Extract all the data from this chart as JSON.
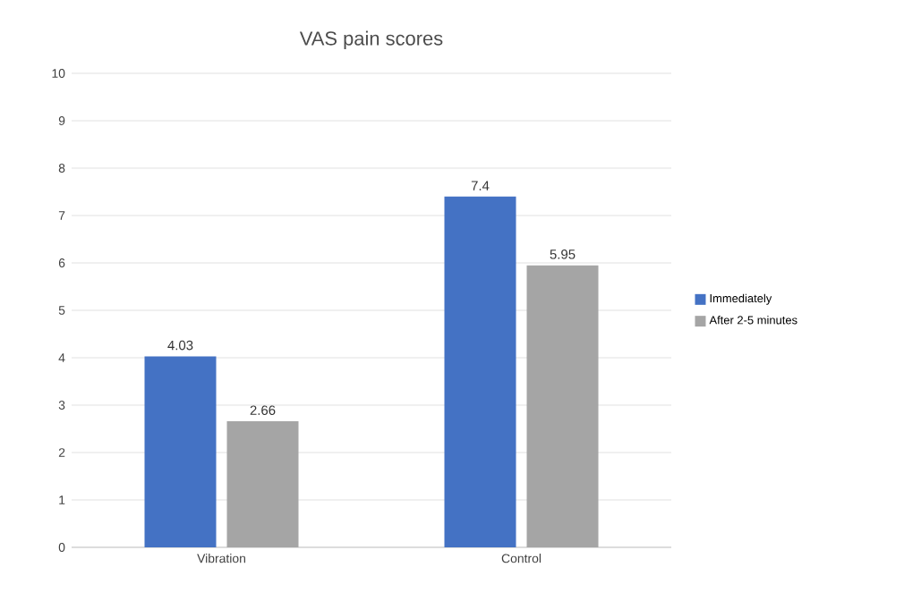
{
  "chart_data": {
    "type": "bar",
    "title": "VAS pain scores",
    "categories": [
      "Vibration",
      "Control"
    ],
    "series": [
      {
        "name": "Immediately",
        "color": "#4472c4",
        "values": [
          4.03,
          7.4
        ]
      },
      {
        "name": "After 2-5 minutes",
        "color": "#a5a5a5",
        "values": [
          2.66,
          5.95
        ]
      }
    ],
    "ylim": [
      0,
      10
    ],
    "yticks": [
      0,
      1,
      2,
      3,
      4,
      5,
      6,
      7,
      8,
      9,
      10
    ],
    "grid": "y",
    "legend": "right",
    "data_labels": true
  }
}
